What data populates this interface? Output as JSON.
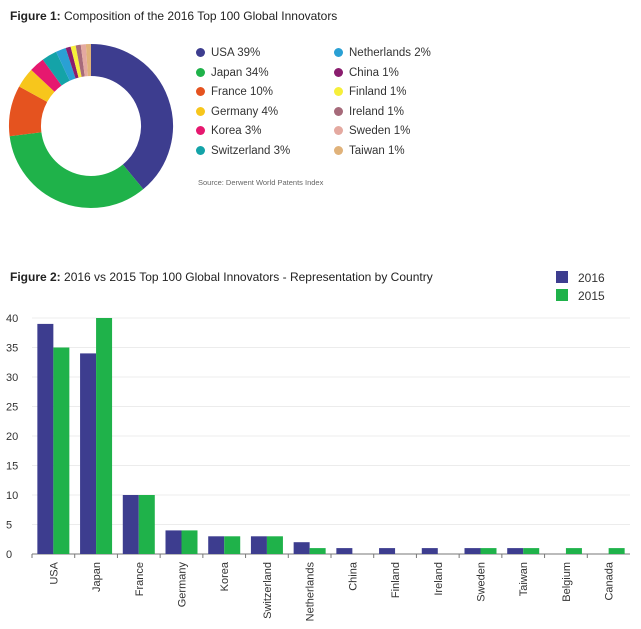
{
  "figure1": {
    "title_prefix": "Figure 1:",
    "title_text": "Composition of the 2016 Top 100 Global Innovators",
    "source": "Source: Derwent World Patents Index"
  },
  "figure2": {
    "title_prefix": "Figure 2:",
    "title_text": "2016 vs 2015 Top 100 Global Innovators - Representation by Country"
  },
  "colors": {
    "series_2016": "#3d3d8f",
    "series_2015": "#1fb24a"
  },
  "chart_data": [
    {
      "type": "pie",
      "variant": "donut",
      "slices": [
        {
          "label": "USA 39%",
          "value": 39,
          "color": "#3d3d8f"
        },
        {
          "label": "Japan 34%",
          "value": 34,
          "color": "#1fb24a"
        },
        {
          "label": "France 10%",
          "value": 10,
          "color": "#e5531f"
        },
        {
          "label": "Germany 4%",
          "value": 4,
          "color": "#f7c61c"
        },
        {
          "label": "Korea 3%",
          "value": 3,
          "color": "#e6186f"
        },
        {
          "label": "Switzerland 3%",
          "value": 3,
          "color": "#14a3a8"
        },
        {
          "label": "Netherlands 2%",
          "value": 2,
          "color": "#2aa0d4"
        },
        {
          "label": "China 1%",
          "value": 1,
          "color": "#8a1d6e"
        },
        {
          "label": "Finland 1%",
          "value": 1,
          "color": "#f6ef3a"
        },
        {
          "label": "Ireland 1%",
          "value": 1,
          "color": "#a66a7a"
        },
        {
          "label": "Sweden 1%",
          "value": 1,
          "color": "#e4a9a0"
        },
        {
          "label": "Taiwan 1%",
          "value": 1,
          "color": "#e0b27a"
        }
      ],
      "legend_placement": "right"
    },
    {
      "type": "bar",
      "categories": [
        "USA",
        "Japan",
        "France",
        "Germany",
        "Korea",
        "Switzerland",
        "Netherlands",
        "China",
        "Finland",
        "Ireland",
        "Sweden",
        "Taiwan",
        "Belgium",
        "Canada"
      ],
      "series": [
        {
          "name": "2016",
          "values": [
            39,
            34,
            10,
            4,
            3,
            3,
            2,
            1,
            1,
            1,
            1,
            1,
            0,
            0
          ]
        },
        {
          "name": "2015",
          "values": [
            35,
            40,
            10,
            4,
            3,
            3,
            1,
            0,
            0,
            0,
            1,
            1,
            1,
            1
          ]
        }
      ],
      "ylim": [
        0,
        40
      ],
      "yticks": [
        0,
        5,
        10,
        15,
        20,
        25,
        30,
        35,
        40
      ],
      "grid": true,
      "legend_placement": "top-right"
    }
  ]
}
